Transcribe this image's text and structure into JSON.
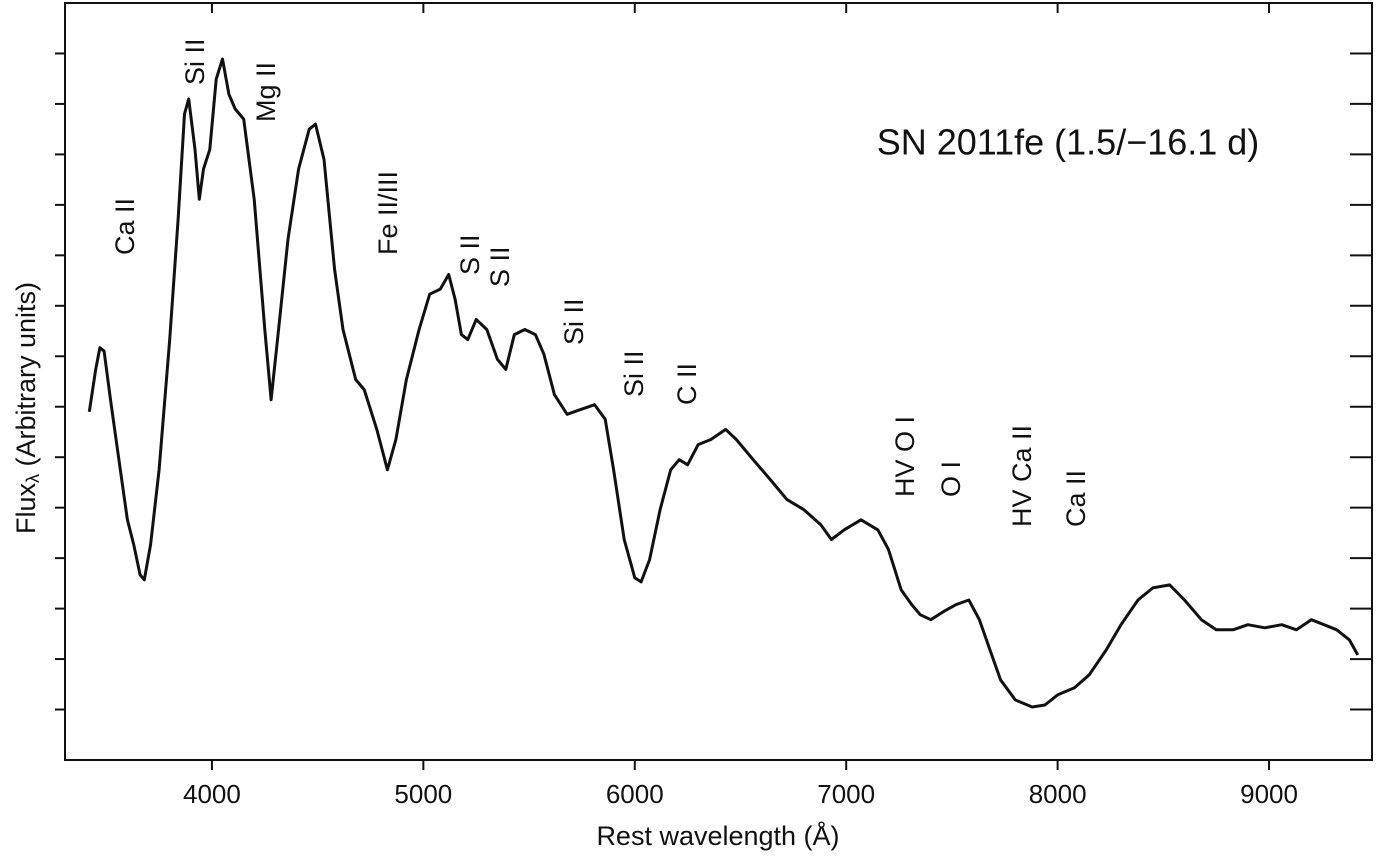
{
  "chart_data": {
    "type": "line",
    "title": "SN 2011fe (1.5/−16.1 d)",
    "xlabel": "Rest wavelength (Å)",
    "ylabel": {
      "text": "Flux",
      "subscript": "λ",
      "suffix": " (Arbitrary units)"
    },
    "annotations": [
      "Ca II",
      "Si II",
      "Mg II",
      "Fe II/III",
      "S II",
      "S II",
      "Si II",
      "Si II",
      "C II",
      "HV O I",
      "O I",
      "HV Ca II",
      "Ca II"
    ],
    "xlim": [
      3305,
      9487
    ],
    "xticks": [
      4000,
      5000,
      6000,
      7000,
      8000,
      9000
    ],
    "ylim": [
      0,
      15
    ],
    "yticks": [
      1,
      2,
      3,
      4,
      5,
      6,
      7,
      8,
      9,
      10,
      11,
      12,
      13,
      14
    ],
    "series": [
      {
        "color": "#111111",
        "x": [
          3420,
          3450,
          3470,
          3490,
          3520,
          3560,
          3600,
          3630,
          3660,
          3680,
          3710,
          3750,
          3800,
          3840,
          3870,
          3890,
          3920,
          3940,
          3960,
          3990,
          4020,
          4050,
          4080,
          4110,
          4150,
          4200,
          4250,
          4280,
          4310,
          4360,
          4410,
          4460,
          4490,
          4530,
          4580,
          4620,
          4680,
          4720,
          4780,
          4830,
          4870,
          4920,
          4980,
          5030,
          5080,
          5120,
          5150,
          5180,
          5210,
          5250,
          5300,
          5350,
          5390,
          5430,
          5480,
          5530,
          5570,
          5620,
          5680,
          5740,
          5810,
          5860,
          5900,
          5950,
          6000,
          6030,
          6070,
          6120,
          6170,
          6210,
          6250,
          6300,
          6360,
          6430,
          6480,
          6560,
          6640,
          6720,
          6800,
          6880,
          6930,
          6990,
          7070,
          7150,
          7200,
          7260,
          7310,
          7350,
          7400,
          7460,
          7520,
          7580,
          7630,
          7680,
          7730,
          7800,
          7880,
          7940,
          8000,
          8080,
          8150,
          8230,
          8300,
          8380,
          8450,
          8530,
          8600,
          8680,
          8750,
          8830,
          8900,
          8980,
          9060,
          9130,
          9200,
          9260,
          9320,
          9380,
          9420
        ],
        "values": [
          6.9,
          7.74,
          8.17,
          8.1,
          7.14,
          5.95,
          4.76,
          4.27,
          3.67,
          3.57,
          4.27,
          5.75,
          8.33,
          10.71,
          12.8,
          13.1,
          12.1,
          11.11,
          11.71,
          12.1,
          13.49,
          13.89,
          13.19,
          12.9,
          12.7,
          11.11,
          8.53,
          7.14,
          8.33,
          10.32,
          11.71,
          12.5,
          12.6,
          11.9,
          9.72,
          8.53,
          7.54,
          7.34,
          6.55,
          5.75,
          6.35,
          7.54,
          8.53,
          9.23,
          9.33,
          9.62,
          9.13,
          8.43,
          8.33,
          8.73,
          8.53,
          7.94,
          7.74,
          8.43,
          8.53,
          8.43,
          8.04,
          7.24,
          6.85,
          6.94,
          7.04,
          6.75,
          5.75,
          4.37,
          3.61,
          3.53,
          3.97,
          4.96,
          5.75,
          5.95,
          5.85,
          6.25,
          6.35,
          6.55,
          6.35,
          5.95,
          5.56,
          5.16,
          4.96,
          4.66,
          4.37,
          4.56,
          4.76,
          4.56,
          4.17,
          3.37,
          3.08,
          2.88,
          2.78,
          2.94,
          3.08,
          3.17,
          2.78,
          2.18,
          1.59,
          1.19,
          1.05,
          1.09,
          1.29,
          1.43,
          1.69,
          2.18,
          2.68,
          3.17,
          3.41,
          3.47,
          3.17,
          2.78,
          2.58,
          2.58,
          2.68,
          2.62,
          2.68,
          2.58,
          2.78,
          2.68,
          2.58,
          2.38,
          2.08
        ]
      }
    ]
  }
}
